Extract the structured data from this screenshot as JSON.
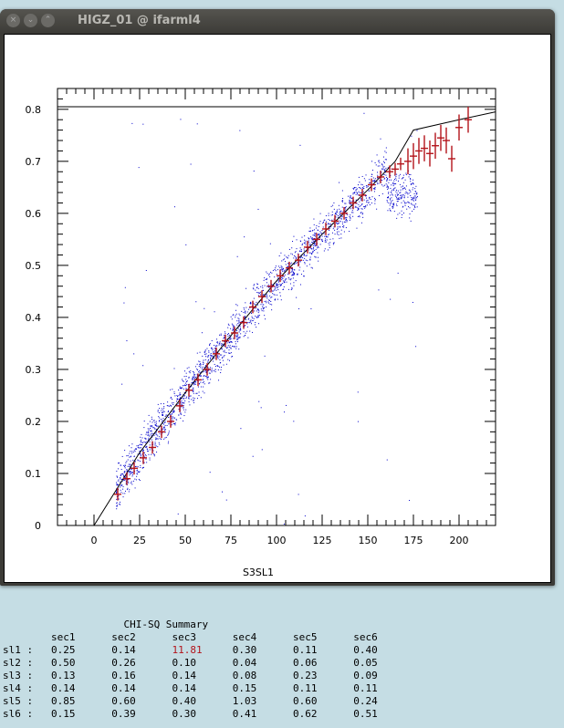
{
  "window": {
    "title": "HIGZ_01 @ ifarml4",
    "buttons": [
      "close",
      "minimize",
      "maximize"
    ]
  },
  "chart_data": {
    "type": "scatter",
    "xlabel": "S3SL1",
    "ylabel": "",
    "xlim": [
      -20,
      220
    ],
    "ylim": [
      0,
      0.84
    ],
    "xticks": [
      "0",
      "25",
      "50",
      "75",
      "100",
      "125",
      "150",
      "175",
      "200"
    ],
    "yticks": [
      "0",
      "0.1",
      "0.2",
      "0.3",
      "0.4",
      "0.5",
      "0.6",
      "0.7",
      "0.8"
    ],
    "reference_line_y": 0.805,
    "fit_curve": {
      "x": [
        0,
        25,
        50,
        75,
        100,
        125,
        150,
        165,
        175,
        200,
        220
      ],
      "y": [
        0,
        0.14,
        0.255,
        0.365,
        0.47,
        0.56,
        0.645,
        0.7,
        0.76,
        0.78,
        0.795
      ]
    },
    "profile": {
      "x": [
        13,
        18,
        22,
        27,
        32,
        37,
        42,
        47,
        52,
        57,
        62,
        67,
        72,
        77,
        82,
        87,
        92,
        97,
        102,
        107,
        112,
        117,
        122,
        127,
        132,
        137,
        142,
        147,
        152,
        157,
        162,
        165,
        168,
        172,
        175,
        178,
        181,
        184,
        187,
        190,
        193,
        196,
        200,
        205
      ],
      "y": [
        0.06,
        0.09,
        0.11,
        0.13,
        0.15,
        0.18,
        0.2,
        0.23,
        0.26,
        0.28,
        0.3,
        0.33,
        0.355,
        0.37,
        0.39,
        0.42,
        0.44,
        0.46,
        0.48,
        0.495,
        0.51,
        0.535,
        0.55,
        0.57,
        0.585,
        0.6,
        0.62,
        0.635,
        0.655,
        0.67,
        0.68,
        0.685,
        0.695,
        0.7,
        0.71,
        0.72,
        0.725,
        0.715,
        0.73,
        0.745,
        0.74,
        0.705,
        0.765,
        0.78
      ],
      "series_color": "#b3141b"
    },
    "scatter_color": "#0000cc"
  },
  "summary": {
    "title": "CHI-SQ Summary",
    "columns": [
      "sec1",
      "sec2",
      "sec3",
      "sec4",
      "sec5",
      "sec6"
    ],
    "rows": [
      {
        "label": "sl1 :",
        "values": [
          "0.25",
          "0.14",
          "11.81",
          "0.30",
          "0.11",
          "0.40"
        ]
      },
      {
        "label": "sl2 :",
        "values": [
          "0.50",
          "0.26",
          "0.10",
          "0.04",
          "0.06",
          "0.05"
        ]
      },
      {
        "label": "sl3 :",
        "values": [
          "0.13",
          "0.16",
          "0.14",
          "0.08",
          "0.23",
          "0.09"
        ]
      },
      {
        "label": "sl4 :",
        "values": [
          "0.14",
          "0.14",
          "0.14",
          "0.15",
          "0.11",
          "0.11"
        ]
      },
      {
        "label": "sl5 :",
        "values": [
          "0.85",
          "0.60",
          "0.40",
          "1.03",
          "0.60",
          "0.24"
        ]
      },
      {
        "label": "sl6 :",
        "values": [
          "0.15",
          "0.39",
          "0.30",
          "0.41",
          "0.62",
          "0.51"
        ]
      }
    ],
    "highlight": {
      "row": 0,
      "col": 2,
      "color": "#b3141b"
    }
  }
}
